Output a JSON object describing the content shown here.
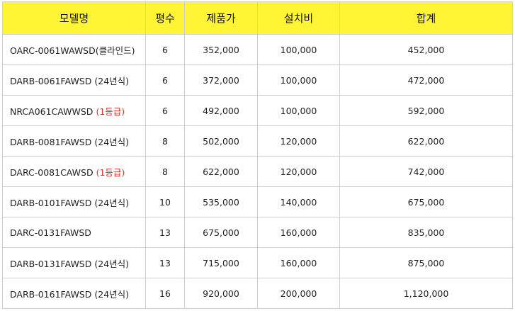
{
  "colors": {
    "header_bg": "#fff535",
    "grid": "#cfcfcf",
    "highlight_tag": "#e3312b"
  },
  "header": {
    "model": "모델명",
    "area": "평수",
    "product_price": "제품가",
    "install_fee": "설치비",
    "total": "합계"
  },
  "rows": [
    {
      "model": "OARC-0061WAWSD",
      "tag": "(클라인드)",
      "tag_highlight": false,
      "area": "6",
      "product_price": "352,000",
      "install_fee": "100,000",
      "total": "452,000"
    },
    {
      "model": "DARB-0061FAWSD",
      "tag": "(24년식)",
      "tag_highlight": false,
      "area": "6",
      "product_price": "372,000",
      "install_fee": "100,000",
      "total": "472,000"
    },
    {
      "model": "NRCA061CAWWSD",
      "tag": "(1등급)",
      "tag_highlight": true,
      "area": "6",
      "product_price": "492,000",
      "install_fee": "100,000",
      "total": "592,000"
    },
    {
      "model": "DARB-0081FAWSD",
      "tag": "(24년식)",
      "tag_highlight": false,
      "area": "8",
      "product_price": "502,000",
      "install_fee": "120,000",
      "total": "622,000"
    },
    {
      "model": "DARC-0081CAWSD",
      "tag": "(1등급)",
      "tag_highlight": true,
      "area": "8",
      "product_price": "622,000",
      "install_fee": "120,000",
      "total": "742,000"
    },
    {
      "model": "DARB-0101FAWSD",
      "tag": "(24년식)",
      "tag_highlight": false,
      "area": "10",
      "product_price": "535,000",
      "install_fee": "140,000",
      "total": "675,000"
    },
    {
      "model": "DARC-0131FAWSD",
      "tag": "",
      "tag_highlight": false,
      "area": "13",
      "product_price": "675,000",
      "install_fee": "160,000",
      "total": "835,000"
    },
    {
      "model": "DARB-0131FAWSD",
      "tag": "(24년식)",
      "tag_highlight": false,
      "area": "13",
      "product_price": "715,000",
      "install_fee": "160,000",
      "total": "875,000"
    },
    {
      "model": "DARB-0161FAWSD",
      "tag": "(24년식)",
      "tag_highlight": false,
      "area": "16",
      "product_price": "920,000",
      "install_fee": "200,000",
      "total": "1,120,000"
    }
  ]
}
